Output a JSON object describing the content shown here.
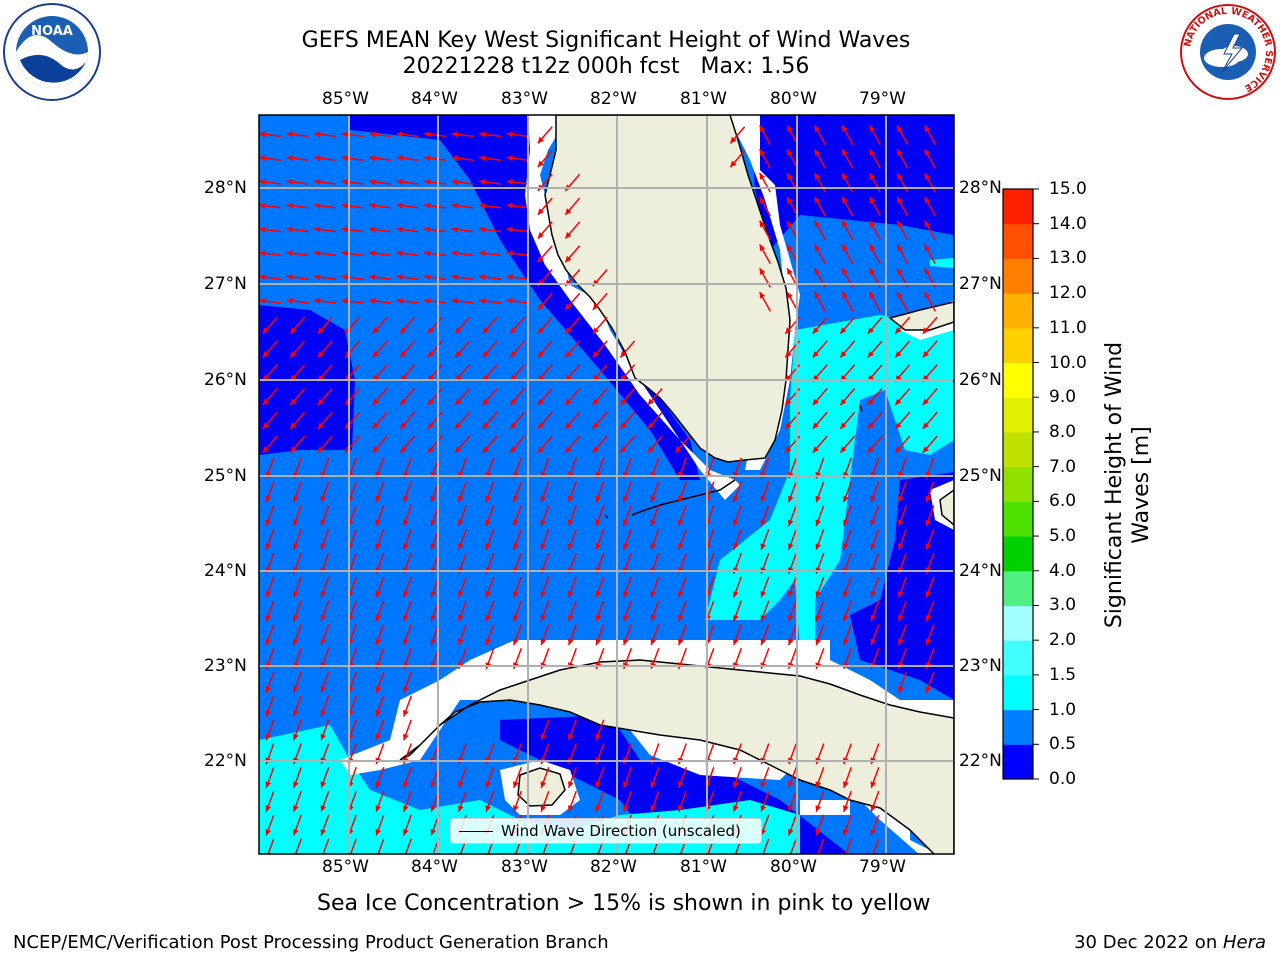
{
  "title": {
    "line1": "GEFS MEAN Key West Significant Height of Wind Waves",
    "line2": "20221228 t12z 000h fcst   Max: 1.56"
  },
  "map": {
    "lon_labels": [
      "85°W",
      "84°W",
      "83°W",
      "82°W",
      "81°W",
      "80°W",
      "79°W"
    ],
    "lat_labels": [
      "28°N",
      "27°N",
      "26°N",
      "25°N",
      "24°N",
      "23°N",
      "22°N"
    ],
    "legend_label": "Wind Wave Direction (unscaled)",
    "colors": {
      "land": "#eeeedd",
      "wave_0_0.5": "#0000f5",
      "wave_0.5_1.0": "#0077ff",
      "wave_1.0_1.5": "#00ffff",
      "arrow": "#ff0000",
      "grid": "#b0b0b0"
    }
  },
  "colorbar": {
    "label_line1": "Significant Height of Wind",
    "label_line2": "Waves [m]",
    "ticks": [
      "0.0",
      "0.5",
      "1.0",
      "1.5",
      "2.0",
      "3.0",
      "4.0",
      "5.0",
      "6.0",
      "7.0",
      "8.0",
      "9.0",
      "10.0",
      "11.0",
      "12.0",
      "13.0",
      "14.0",
      "15.0"
    ],
    "colors": [
      "#0000ff",
      "#0080ff",
      "#00ffff",
      "#40ffff",
      "#a0ffff",
      "#50f080",
      "#00d000",
      "#50e000",
      "#90e000",
      "#c0e000",
      "#e0f000",
      "#ffff00",
      "#ffd000",
      "#ffb000",
      "#ff8000",
      "#ff5000",
      "#ff2000"
    ]
  },
  "caption": "Sea Ice Concentration > 15% is shown in pink to yellow",
  "footer": {
    "left": "NCEP/EMC/Verification Post Processing Product Generation Branch",
    "date": "30 Dec 2022 on ",
    "machine": "Hera"
  },
  "logos": {
    "noaa": "NOAA",
    "nws_ring": "NATIONAL WEATHER SERVICE"
  }
}
